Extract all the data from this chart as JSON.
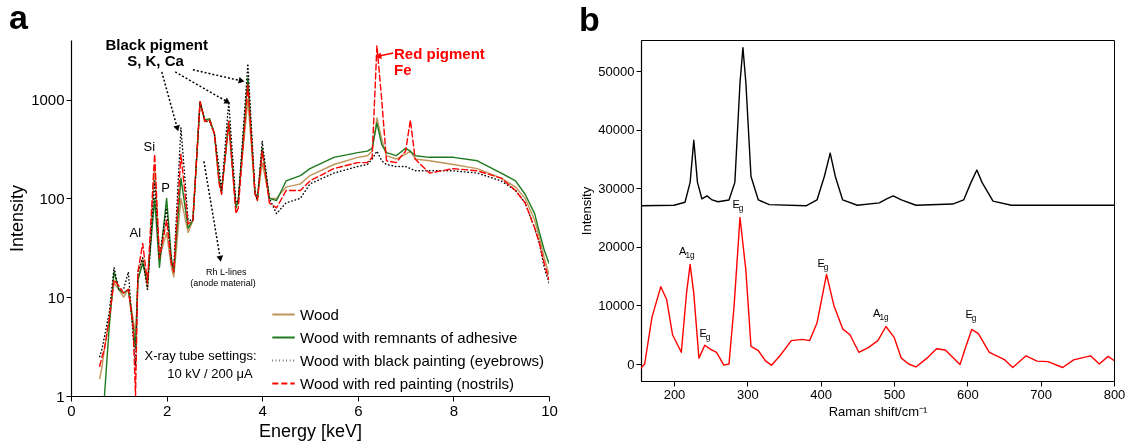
{
  "chart_data": [
    {
      "type": "line",
      "title": "a",
      "xlabel": "Energy [keV]",
      "ylabel": "Intensity",
      "x": [
        0.6,
        0.65,
        0.7,
        0.8,
        0.9,
        1.0,
        1.1,
        1.2,
        1.3,
        1.35,
        1.4,
        1.5,
        1.6,
        1.75,
        1.85,
        2.0,
        2.1,
        2.15,
        2.3,
        2.45,
        2.55,
        2.7,
        2.8,
        2.9,
        3.0,
        3.1,
        3.15,
        3.3,
        3.45,
        3.5,
        3.7,
        3.85,
        3.9,
        4.0,
        4.15,
        4.3,
        4.5,
        4.8,
        5.0,
        5.5,
        6.0,
        6.2,
        6.3,
        6.4,
        6.5,
        6.6,
        6.8,
        7.0,
        7.1,
        7.2,
        7.5,
        8.0,
        8.5,
        9.0,
        9.3,
        9.5,
        9.7,
        9.8,
        9.9,
        10.0
      ],
      "series": [
        {
          "name": "Wood",
          "color": "#c0955a",
          "line_style": "solid",
          "values": [
            1.5,
            2,
            3,
            6,
            14,
            12,
            10,
            12,
            6,
            4,
            15,
            25,
            12,
            210,
            25,
            45,
            20,
            16,
            100,
            45,
            60,
            950,
            600,
            620,
            450,
            150,
            120,
            550,
            80,
            100,
            1000,
            110,
            100,
            230,
            100,
            100,
            130,
            140,
            170,
            220,
            260,
            270,
            300,
            650,
            400,
            270,
            250,
            280,
            300,
            250,
            240,
            220,
            200,
            160,
            130,
            100,
            60,
            40,
            25,
            17
          ]
        },
        {
          "name": "Wood with remnants of adhesive",
          "color": "#1e7a1e",
          "line_style": "solid",
          "values": [
            null,
            null,
            1,
            5,
            18,
            12,
            11,
            12,
            5,
            3,
            15,
            22,
            14,
            100,
            20,
            100,
            25,
            18,
            160,
            50,
            60,
            950,
            620,
            640,
            450,
            150,
            115,
            600,
            80,
            95,
            1650,
            110,
            100,
            320,
            100,
            95,
            150,
            170,
            200,
            260,
            290,
            300,
            320,
            580,
            350,
            290,
            270,
            320,
            300,
            270,
            260,
            260,
            240,
            180,
            150,
            110,
            70,
            45,
            30,
            22
          ]
        },
        {
          "name": "Wood with black painting (eyebrows)",
          "color": "#000000",
          "line_style": "dotted",
          "values": [
            2.5,
            3,
            4,
            7,
            20,
            12,
            12,
            18,
            4,
            2,
            18,
            25,
            12,
            150,
            25,
            80,
            22,
            20,
            520,
            60,
            60,
            950,
            600,
            600,
            450,
            200,
            120,
            950,
            90,
            95,
            2300,
            120,
            95,
            380,
            100,
            70,
            90,
            100,
            140,
            180,
            210,
            220,
            250,
            300,
            240,
            220,
            210,
            210,
            200,
            190,
            190,
            190,
            180,
            150,
            120,
            90,
            50,
            35,
            20,
            14
          ]
        },
        {
          "name": "Wood with red painting (nostrils)",
          "color": "#ff0000",
          "line_style": "dashed",
          "values": [
            2,
            2.5,
            3,
            6,
            15,
            13,
            11,
            12,
            5,
            1,
            18,
            35,
            14,
            280,
            25,
            60,
            22,
            18,
            280,
            55,
            60,
            950,
            600,
            620,
            450,
            140,
            110,
            600,
            70,
            80,
            1400,
            110,
            95,
            300,
            90,
            80,
            120,
            120,
            150,
            200,
            230,
            230,
            260,
            3500,
            1000,
            240,
            230,
            300,
            620,
            250,
            180,
            200,
            190,
            160,
            120,
            90,
            50,
            35,
            22,
            15
          ]
        }
      ],
      "xlim": [
        0,
        10
      ],
      "xticks": [
        0,
        2,
        4,
        6,
        8,
        10
      ],
      "ylim": [
        1,
        4000
      ],
      "yticks": [
        1,
        10,
        100,
        1000
      ],
      "log": true,
      "grid": false,
      "legend": "bottom right",
      "annotations": [
        {
          "text": "Black pigment",
          "x": 3.55,
          "y": 1550
        },
        {
          "text": "S, K, Ca",
          "x": 3.26,
          "y": 955
        },
        {
          "text": "Red pigment",
          "x": 6.45,
          "y": 2750
        },
        "Fe",
        "Si",
        "P",
        "Al",
        {
          "text": "Rh L-lines",
          "x": 3.12,
          "y": 25
        },
        "(anode material)",
        "X-ray tube settings:",
        "10 kV / 200 μA"
      ]
    },
    {
      "type": "line",
      "title": "b",
      "xlabel": "Raman shift/cm⁻¹",
      "ylabel": "Intensity",
      "series": [
        {
          "color": "#000000",
          "x": [
            155,
            200,
            215,
            222,
            227,
            232,
            238,
            245,
            252,
            260,
            275,
            283,
            290,
            294,
            298,
            305,
            315,
            330,
            380,
            395,
            405,
            413,
            420,
            430,
            450,
            480,
            490,
            499,
            510,
            530,
            580,
            595,
            605,
            613,
            620,
            635,
            660,
            800
          ],
          "values": [
            27000,
            27100,
            27600,
            31000,
            38200,
            31000,
            28200,
            28700,
            28000,
            27700,
            28000,
            31000,
            48000,
            54000,
            48000,
            32000,
            28000,
            27200,
            27000,
            28000,
            32000,
            36000,
            32000,
            28000,
            27100,
            27500,
            28200,
            28700,
            28000,
            27100,
            27300,
            28000,
            31000,
            33100,
            31000,
            27800,
            27100,
            27100
          ]
        },
        {
          "color": "#ff0000",
          "x": [
            155,
            160,
            170,
            182,
            190,
            198,
            210,
            217,
            222,
            227,
            234,
            242,
            250,
            258,
            268,
            275,
            282,
            290,
            298,
            305,
            315,
            325,
            333,
            345,
            360,
            375,
            385,
            395,
            408,
            418,
            430,
            440,
            452,
            465,
            478,
            489,
            500,
            510,
            520,
            530,
            545,
            558,
            570,
            590,
            598,
            606,
            615,
            630,
            650,
            662,
            680,
            695,
            710,
            730,
            745,
            755,
            768,
            780,
            792,
            800
          ],
          "values": [
            -700,
            0,
            8000,
            13200,
            11000,
            5000,
            2000,
            12000,
            17000,
            12000,
            1000,
            3200,
            2500,
            2000,
            -200,
            0,
            10000,
            25000,
            16000,
            3000,
            2300,
            500,
            -200,
            1500,
            4000,
            4200,
            4000,
            7000,
            15300,
            10000,
            6000,
            5000,
            2000,
            2800,
            4000,
            6400,
            4600,
            1000,
            0,
            -500,
            1000,
            2600,
            2400,
            -100,
            3000,
            5900,
            5200,
            2000,
            800,
            -600,
            1400,
            500,
            400,
            -600,
            700,
            1000,
            1400,
            0,
            1300,
            600
          ]
        }
      ],
      "xlim": [
        155,
        800
      ],
      "xticks": [
        200,
        300,
        400,
        500,
        600,
        700,
        800
      ],
      "ylim": [
        -2900,
        55300
      ],
      "yticks": [
        0,
        10000,
        20000,
        30000,
        40000,
        50000
      ],
      "grid": false,
      "annotations": [
        "A$_{1g}$",
        "E$_{g}$",
        "E$_{g}$",
        "E$_{g}$",
        "A$_{1g}$",
        "E$_{g}$"
      ]
    }
  ]
}
